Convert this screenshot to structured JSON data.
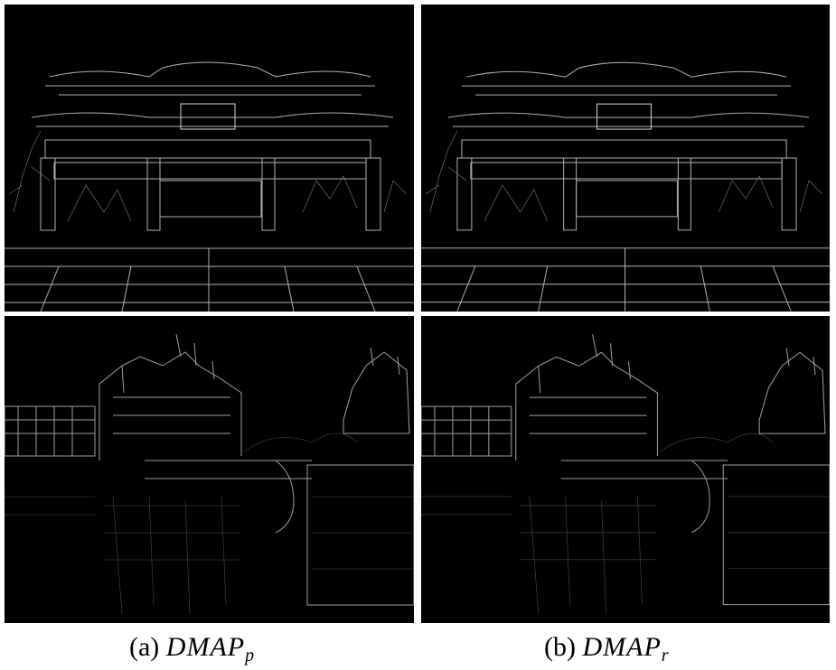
{
  "captions": {
    "a": {
      "label": "(a)",
      "symbol": "DMAP",
      "subscript": "p"
    },
    "b": {
      "label": "(b)",
      "symbol": "DMAP",
      "subscript": "r"
    }
  },
  "panels": {
    "top": {
      "subject": "gateway-edge-map"
    },
    "bottom": {
      "subject": "castle-edge-map"
    }
  },
  "colors": {
    "background": "#000000",
    "edge": "#d8d8d8"
  }
}
